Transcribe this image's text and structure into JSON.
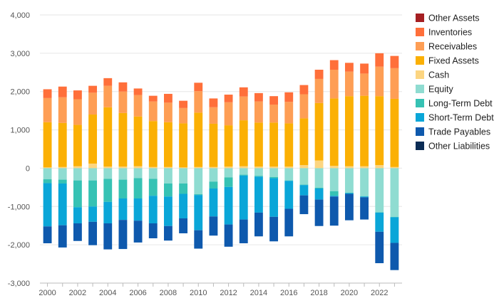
{
  "chart_data": {
    "type": "bar",
    "stacked": true,
    "title": "",
    "xlabel": "",
    "ylabel": "",
    "ylim": [
      -3000,
      4000
    ],
    "yticks": [
      -3000,
      -2000,
      -1000,
      0,
      1000,
      2000,
      3000,
      4000
    ],
    "ytick_labels": [
      "-3,000",
      "-2,000",
      "-1,000",
      "0",
      "1,000",
      "2,000",
      "3,000",
      "4,000"
    ],
    "grid": true,
    "legend_position": "right",
    "categories": [
      "2000",
      "2001",
      "2002",
      "2003",
      "2004",
      "2005",
      "2006",
      "2007",
      "2008",
      "2009",
      "2010",
      "2011",
      "2012",
      "2013",
      "2014",
      "2015",
      "2016",
      "2017",
      "2018",
      "2019",
      "2020",
      "2021",
      "2022",
      "2023"
    ],
    "xtick_labels": [
      "2000",
      "2002",
      "2004",
      "2006",
      "2008",
      "2010",
      "2012",
      "2014",
      "2016",
      "2018",
      "2020",
      "2022"
    ],
    "positive_series": [
      {
        "name": "Cash",
        "color": "#FCD581",
        "values": [
          20,
          30,
          50,
          120,
          40,
          40,
          50,
          30,
          30,
          20,
          30,
          30,
          40,
          50,
          40,
          40,
          40,
          80,
          200,
          60,
          50,
          50,
          80,
          30
        ]
      },
      {
        "name": "Fixed Assets",
        "color": "#FBB004",
        "values": [
          1180,
          1150,
          1080,
          1280,
          1550,
          1400,
          1300,
          1200,
          1170,
          1150,
          1420,
          1130,
          1080,
          1200,
          1150,
          1150,
          1130,
          1220,
          1500,
          1760,
          1830,
          1840,
          1800,
          1780
        ]
      },
      {
        "name": "Receivables",
        "color": "#FE9E55",
        "values": [
          630,
          670,
          670,
          570,
          560,
          560,
          560,
          510,
          510,
          400,
          560,
          430,
          600,
          620,
          550,
          470,
          560,
          630,
          630,
          750,
          640,
          580,
          770,
          800
        ]
      },
      {
        "name": "Inventories",
        "color": "#FF6F3A",
        "values": [
          230,
          280,
          230,
          180,
          200,
          240,
          170,
          150,
          230,
          190,
          220,
          230,
          200,
          240,
          220,
          220,
          250,
          240,
          240,
          250,
          230,
          260,
          350,
          320
        ]
      },
      {
        "name": "Other Assets",
        "color": "#A51F22",
        "values": [
          0,
          0,
          0,
          0,
          0,
          0,
          0,
          0,
          0,
          0,
          0,
          0,
          0,
          0,
          0,
          0,
          0,
          0,
          0,
          0,
          0,
          0,
          0,
          0
        ]
      }
    ],
    "negative_series": [
      {
        "name": "Equity",
        "color": "#8FDCD1",
        "values": [
          -290,
          -300,
          -320,
          -320,
          -280,
          -300,
          -260,
          -280,
          -400,
          -400,
          -680,
          -350,
          -240,
          -170,
          -200,
          -230,
          -320,
          -430,
          -510,
          -600,
          -640,
          -730,
          -1150,
          -1270
        ]
      },
      {
        "name": "Long-Term Debt",
        "color": "#36C2B4",
        "values": [
          -100,
          -100,
          -700,
          -680,
          -600,
          -490,
          -530,
          -440,
          -340,
          -270,
          -20,
          -180,
          -250,
          -20,
          -20,
          -30,
          -10,
          -10,
          -20,
          -120,
          -10,
          -10,
          -10,
          -10
        ]
      },
      {
        "name": "Short-Term Debt",
        "color": "#0AA6D8",
        "values": [
          -1130,
          -1090,
          -420,
          -400,
          -560,
          -560,
          -580,
          -720,
          -770,
          -640,
          -920,
          -730,
          -980,
          -1150,
          -940,
          -1010,
          -730,
          -270,
          -290,
          -20,
          -20,
          -20,
          -500,
          -670
        ]
      },
      {
        "name": "Trade Payables",
        "color": "#0E59AD",
        "values": [
          -440,
          -580,
          -460,
          -610,
          -680,
          -760,
          -570,
          -390,
          -380,
          -390,
          -480,
          -500,
          -580,
          -620,
          -620,
          -640,
          -720,
          -490,
          -690,
          -760,
          -690,
          -580,
          -820,
          -710
        ]
      },
      {
        "name": "Other Liabilities",
        "color": "#0B2C55",
        "values": [
          0,
          0,
          0,
          0,
          0,
          0,
          0,
          0,
          0,
          0,
          0,
          0,
          0,
          0,
          0,
          0,
          0,
          0,
          0,
          0,
          0,
          0,
          0,
          0
        ]
      }
    ],
    "legend": [
      {
        "name": "Other Assets",
        "color": "#A51F22"
      },
      {
        "name": "Inventories",
        "color": "#FF6F3A"
      },
      {
        "name": "Receivables",
        "color": "#FE9E55"
      },
      {
        "name": "Fixed Assets",
        "color": "#FBB004"
      },
      {
        "name": "Cash",
        "color": "#FCD581"
      },
      {
        "name": "Equity",
        "color": "#8FDCD1"
      },
      {
        "name": "Long-Term Debt",
        "color": "#36C2B4"
      },
      {
        "name": "Short-Term Debt",
        "color": "#0AA6D8"
      },
      {
        "name": "Trade Payables",
        "color": "#0E59AD"
      },
      {
        "name": "Other Liabilities",
        "color": "#0B2C55"
      }
    ]
  }
}
